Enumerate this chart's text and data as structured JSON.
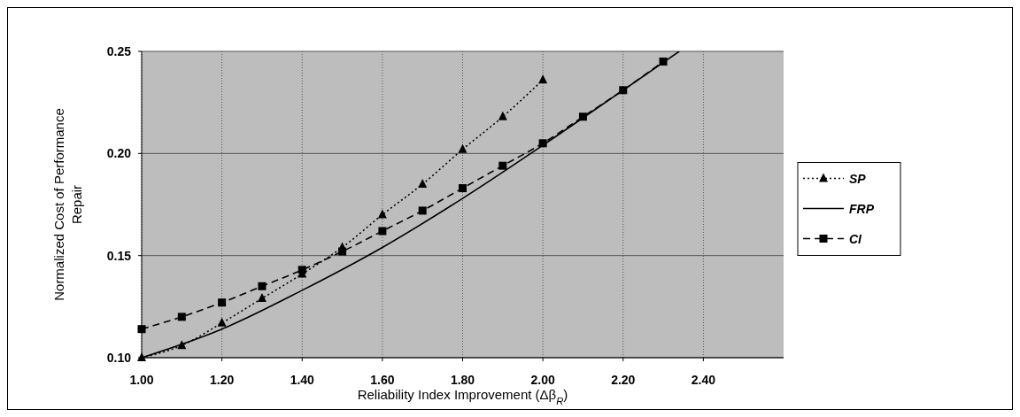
{
  "chart_data": {
    "type": "line",
    "xlabel": "Reliability Index Improvement (Δβ$_{R}$)",
    "ylabel": "Normalized Cost of Performance Repair",
    "xlim": [
      1.0,
      2.6
    ],
    "xticks": [
      {
        "value": 1.0,
        "label": "1.00"
      },
      {
        "value": 1.2,
        "label": "1.20"
      },
      {
        "value": 1.4,
        "label": "1.40"
      },
      {
        "value": 1.6,
        "label": "1.60"
      },
      {
        "value": 1.8,
        "label": "1.80"
      },
      {
        "value": 2.0,
        "label": "2.00"
      },
      {
        "value": 2.2,
        "label": "2.20"
      },
      {
        "value": 2.4,
        "label": "2.40"
      }
    ],
    "ylim": [
      0.1,
      0.25
    ],
    "yticks": [
      {
        "value": 0.1,
        "label": "0.10"
      },
      {
        "value": 0.15,
        "label": "0.15"
      },
      {
        "value": 0.2,
        "label": "0.20"
      },
      {
        "value": 0.25,
        "label": "0.25"
      }
    ],
    "grid": true,
    "legend": "right",
    "series": [
      {
        "name": "SP",
        "color": "#000000",
        "marker": "triangle",
        "line_style": "dotted",
        "x": [
          1.0,
          1.1,
          1.2,
          1.3,
          1.4,
          1.5,
          1.6,
          1.7,
          1.8,
          1.9,
          2.0
        ],
        "values": [
          0.1,
          0.106,
          0.117,
          0.129,
          0.141,
          0.154,
          0.17,
          0.185,
          0.202,
          0.218,
          0.236
        ]
      },
      {
        "name": "FRP",
        "color": "#000000",
        "marker": "none",
        "line_style": "solid",
        "x": [
          1.0,
          1.2,
          1.4,
          1.6,
          1.8,
          2.0,
          2.2,
          2.34
        ],
        "values": [
          0.1,
          0.114,
          0.133,
          0.154,
          0.178,
          0.204,
          0.231,
          0.25
        ]
      },
      {
        "name": "CI",
        "color": "#000000",
        "marker": "square",
        "line_style": "dashed",
        "x": [
          1.0,
          1.1,
          1.2,
          1.3,
          1.4,
          1.5,
          1.6,
          1.7,
          1.8,
          1.9,
          2.0,
          2.1,
          2.2,
          2.3
        ],
        "values": [
          0.114,
          0.12,
          0.127,
          0.135,
          0.143,
          0.152,
          0.162,
          0.172,
          0.183,
          0.194,
          0.205,
          0.218,
          0.231,
          0.245
        ]
      }
    ]
  }
}
